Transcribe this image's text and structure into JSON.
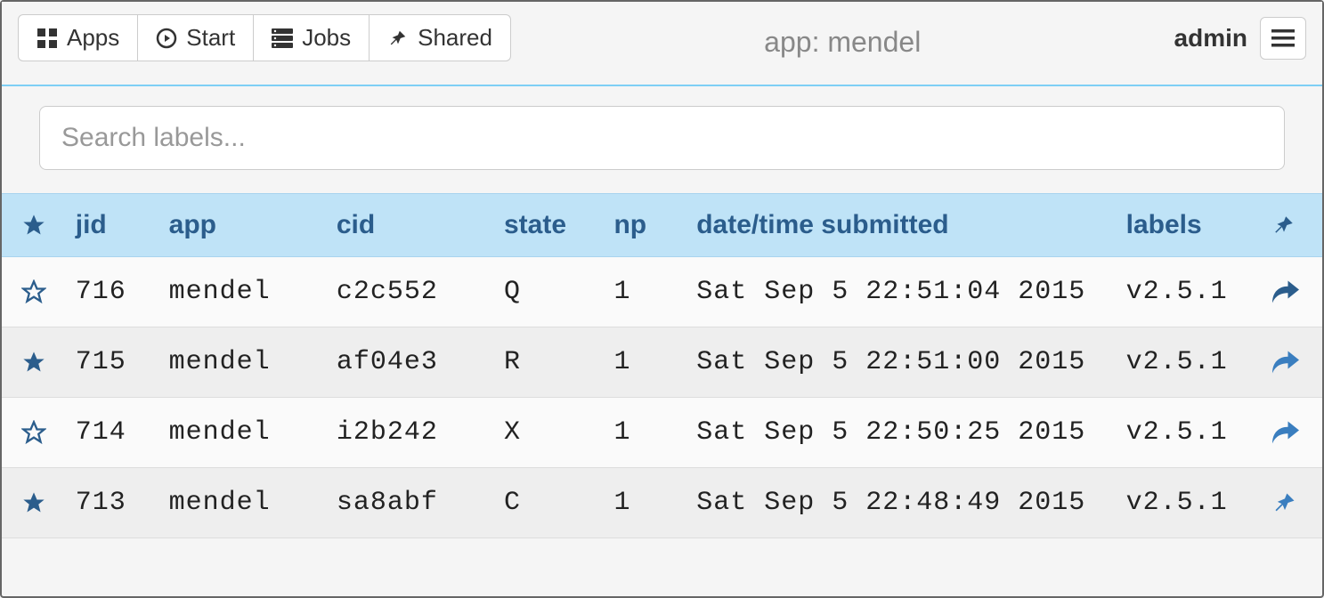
{
  "colors": {
    "header_bg": "#bfe3f7",
    "header_text": "#2b5d8c",
    "accent": "#2b5d8c",
    "accent_light": "#3a7ebf",
    "row_alt_bg": "#eeeeee",
    "row_bg": "#fafafa",
    "border": "#cccccc",
    "title_text": "#888888",
    "divider": "#7ecff5"
  },
  "nav": {
    "apps": "Apps",
    "start": "Start",
    "jobs": "Jobs",
    "shared": "Shared"
  },
  "title": "app: mendel",
  "user": "admin",
  "search": {
    "placeholder": "Search labels..."
  },
  "columns": {
    "jid": "jid",
    "app": "app",
    "cid": "cid",
    "state": "state",
    "np": "np",
    "date": "date/time submitted",
    "labels": "labels"
  },
  "rows": [
    {
      "starred": false,
      "jid": "716",
      "app": "mendel",
      "cid": "c2c552",
      "state": "Q",
      "np": "1",
      "date": "Sat Sep 5 22:51:04 2015",
      "labels": "v2.5.1",
      "action": "share"
    },
    {
      "starred": true,
      "jid": "715",
      "app": "mendel",
      "cid": "af04e3",
      "state": "R",
      "np": "1",
      "date": "Sat Sep 5 22:51:00 2015",
      "labels": "v2.5.1",
      "action": "share"
    },
    {
      "starred": false,
      "jid": "714",
      "app": "mendel",
      "cid": "i2b242",
      "state": "X",
      "np": "1",
      "date": "Sat Sep 5 22:50:25 2015",
      "labels": "v2.5.1",
      "action": "share"
    },
    {
      "starred": true,
      "jid": "713",
      "app": "mendel",
      "cid": "sa8abf",
      "state": "C",
      "np": "1",
      "date": "Sat Sep 5 22:48:49 2015",
      "labels": "v2.5.1",
      "action": "pin"
    }
  ]
}
